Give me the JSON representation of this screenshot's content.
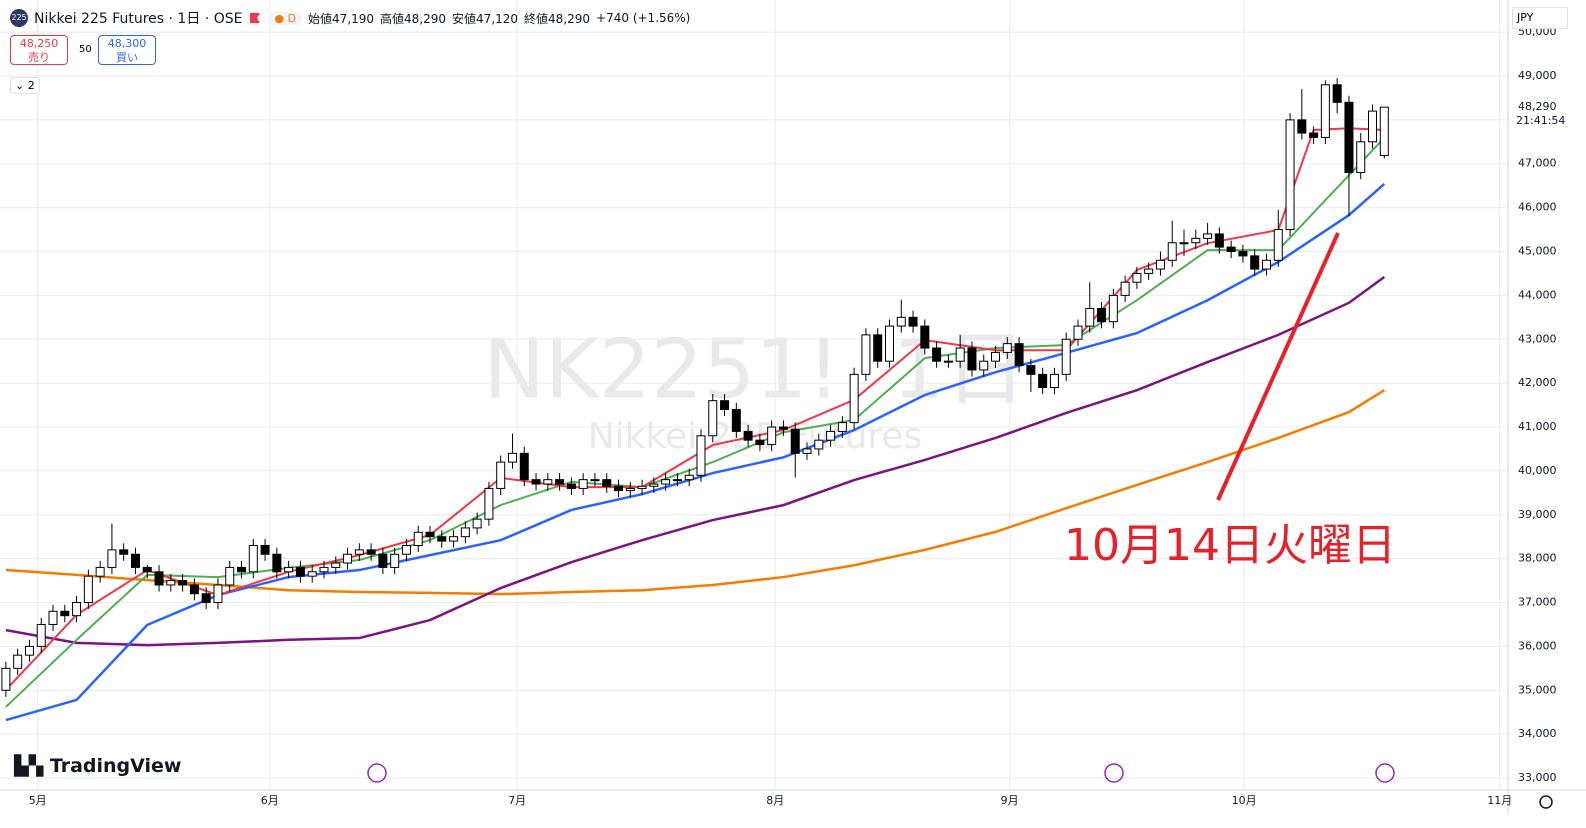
{
  "header": {
    "symbol": "Nikkei 225 Futures · 1日 · OSE",
    "badge": "225",
    "mode": "D",
    "ohlc": [
      "始値47,190",
      "高値48,290",
      "安値47,120",
      "終値48,290",
      "+740 (+1.56%)"
    ],
    "sell_price": "48,250",
    "sell": "売り",
    "spread": "50",
    "buy_price": "48,300",
    "buy": "買い",
    "indicators": "2",
    "currency": "JPY",
    "logo": "TradingView"
  },
  "chart_data": {
    "type": "candlestick",
    "watermark": "NK2251!, 1日",
    "watermark_sub": "Nikkei 225 Futures",
    "annotation": "10月14日火曜日",
    "xlim": [
      -0.5,
      127.5
    ],
    "xticks": [
      {
        "value": 2.7,
        "label": "5月"
      },
      {
        "value": 22.4,
        "label": "6月"
      },
      {
        "value": 43.4,
        "label": "7月"
      },
      {
        "value": 65.3,
        "label": "8月"
      },
      {
        "value": 85.2,
        "label": "9月"
      },
      {
        "value": 105.1,
        "label": "10月"
      },
      {
        "value": 126.8,
        "label": "11月"
      }
    ],
    "ylim": [
      32727,
      50732
    ],
    "yticks": [
      {
        "value": 33000,
        "label": "33,000"
      },
      {
        "value": 34000,
        "label": "34,000"
      },
      {
        "value": 35000,
        "label": "35,000"
      },
      {
        "value": 36000,
        "label": "36,000"
      },
      {
        "value": 37000,
        "label": "37,000"
      },
      {
        "value": 38000,
        "label": "38,000"
      },
      {
        "value": 39000,
        "label": "39,000"
      },
      {
        "value": 40000,
        "label": "40,000"
      },
      {
        "value": 41000,
        "label": "41,000"
      },
      {
        "value": 42000,
        "label": "42,000"
      },
      {
        "value": 43000,
        "label": "43,000"
      },
      {
        "value": 44000,
        "label": "44,000"
      },
      {
        "value": 45000,
        "label": "45,000"
      },
      {
        "value": 46000,
        "label": "46,000"
      },
      {
        "value": 47000,
        "label": "47,000"
      },
      {
        "value": 48000,
        "label": "48,000"
      },
      {
        "value": 49000,
        "label": "49,000"
      },
      {
        "value": 50000,
        "label": "50,000"
      }
    ],
    "grid": true,
    "up_color": "#ffffff",
    "down_color": "#000000",
    "last_price": {
      "value": 48290,
      "label": "48,290"
    },
    "countdown": "21:41:54",
    "candles": [
      [
        35000,
        35650,
        34850,
        35500
      ],
      [
        35500,
        35950,
        35350,
        35800
      ],
      [
        35800,
        36150,
        35650,
        36000
      ],
      [
        36000,
        36650,
        35850,
        36500
      ],
      [
        36500,
        36950,
        36350,
        36800
      ],
      [
        36800,
        36950,
        36550,
        36700
      ],
      [
        36700,
        37150,
        36550,
        37000
      ],
      [
        37000,
        37750,
        36850,
        37600
      ],
      [
        37600,
        37950,
        37450,
        37800
      ],
      [
        37800,
        38800,
        37650,
        38200
      ],
      [
        38200,
        38350,
        37950,
        38100
      ],
      [
        38100,
        38250,
        37650,
        37800
      ],
      [
        37800,
        37850,
        37550,
        37700
      ],
      [
        37700,
        37850,
        37250,
        37400
      ],
      [
        37400,
        37650,
        37250,
        37500
      ],
      [
        37500,
        37650,
        37250,
        37400
      ],
      [
        37400,
        37550,
        37050,
        37200
      ],
      [
        37200,
        37350,
        36850,
        37000
      ],
      [
        37000,
        37550,
        36850,
        37400
      ],
      [
        37400,
        37950,
        37250,
        37800
      ],
      [
        37800,
        37950,
        37550,
        37700
      ],
      [
        37700,
        38450,
        37550,
        38300
      ],
      [
        38300,
        38450,
        37950,
        38100
      ],
      [
        38100,
        38250,
        37550,
        37700
      ],
      [
        37700,
        37950,
        37550,
        37800
      ],
      [
        37800,
        37950,
        37450,
        37600
      ],
      [
        37600,
        37850,
        37450,
        37700
      ],
      [
        37700,
        37950,
        37550,
        37800
      ],
      [
        37800,
        38050,
        37650,
        37900
      ],
      [
        37900,
        38250,
        37750,
        38100
      ],
      [
        38100,
        38350,
        37950,
        38200
      ],
      [
        38200,
        38350,
        37950,
        38100
      ],
      [
        38100,
        38250,
        37650,
        37800
      ],
      [
        37800,
        38250,
        37650,
        38100
      ],
      [
        38100,
        38450,
        37950,
        38300
      ],
      [
        38300,
        38750,
        38150,
        38600
      ],
      [
        38600,
        38750,
        38350,
        38500
      ],
      [
        38500,
        38650,
        38250,
        38400
      ],
      [
        38400,
        38650,
        38250,
        38500
      ],
      [
        38500,
        38850,
        38350,
        38700
      ],
      [
        38700,
        39050,
        38550,
        38900
      ],
      [
        38900,
        39750,
        38750,
        39600
      ],
      [
        39600,
        40350,
        39450,
        40200
      ],
      [
        40200,
        40850,
        40050,
        40400
      ],
      [
        40400,
        40550,
        39650,
        39800
      ],
      [
        39800,
        39950,
        39550,
        39700
      ],
      [
        39700,
        39950,
        39550,
        39800
      ],
      [
        39800,
        39950,
        39550,
        39700
      ],
      [
        39700,
        39850,
        39450,
        39600
      ],
      [
        39600,
        39950,
        39450,
        39800
      ],
      [
        39800,
        39950,
        39650,
        39800
      ],
      [
        39800,
        39950,
        39500,
        39650
      ],
      [
        39650,
        39800,
        39400,
        39550
      ],
      [
        39550,
        39750,
        39400,
        39600
      ],
      [
        39600,
        39800,
        39450,
        39650
      ],
      [
        39650,
        39850,
        39500,
        39700
      ],
      [
        39700,
        39950,
        39550,
        39800
      ],
      [
        39800,
        39950,
        39650,
        39800
      ],
      [
        39800,
        40050,
        39650,
        39900
      ],
      [
        39900,
        40950,
        39750,
        40800
      ],
      [
        40800,
        41750,
        40650,
        41600
      ],
      [
        41600,
        41750,
        41250,
        41400
      ],
      [
        41400,
        41550,
        40750,
        40900
      ],
      [
        40900,
        41050,
        40550,
        40700
      ],
      [
        40700,
        40850,
        40450,
        40600
      ],
      [
        40600,
        41150,
        40450,
        41000
      ],
      [
        41000,
        41150,
        40800,
        40950
      ],
      [
        40950,
        41100,
        39850,
        40400
      ],
      [
        40400,
        40650,
        40250,
        40500
      ],
      [
        40500,
        40850,
        40350,
        40700
      ],
      [
        40700,
        41050,
        40550,
        40900
      ],
      [
        40900,
        41250,
        40750,
        41100
      ],
      [
        41100,
        42350,
        40950,
        42200
      ],
      [
        42200,
        43250,
        42050,
        43100
      ],
      [
        43100,
        43250,
        42350,
        42500
      ],
      [
        42500,
        43450,
        42350,
        43300
      ],
      [
        43300,
        43900,
        43150,
        43500
      ],
      [
        43500,
        43650,
        43150,
        43300
      ],
      [
        43300,
        43450,
        42650,
        42800
      ],
      [
        42800,
        42950,
        42350,
        42500
      ],
      [
        42500,
        42650,
        42350,
        42500
      ],
      [
        42500,
        43100,
        42350,
        42800
      ],
      [
        42800,
        42950,
        42150,
        42300
      ],
      [
        42300,
        42650,
        42150,
        42500
      ],
      [
        42500,
        42850,
        42350,
        42700
      ],
      [
        42700,
        43050,
        42550,
        42900
      ],
      [
        42900,
        43050,
        42250,
        42400
      ],
      [
        42400,
        42550,
        41800,
        42200
      ],
      [
        42200,
        42350,
        41750,
        41900
      ],
      [
        41900,
        42350,
        41750,
        42200
      ],
      [
        42200,
        43150,
        42050,
        43000
      ],
      [
        43000,
        43450,
        42850,
        43300
      ],
      [
        43300,
        44300,
        43150,
        43700
      ],
      [
        43700,
        43850,
        43250,
        43400
      ],
      [
        43400,
        44150,
        43250,
        44000
      ],
      [
        44000,
        44450,
        43850,
        44300
      ],
      [
        44300,
        44650,
        44150,
        44500
      ],
      [
        44500,
        44750,
        44350,
        44600
      ],
      [
        44600,
        45000,
        44450,
        44800
      ],
      [
        44800,
        45700,
        44650,
        45200
      ],
      [
        45200,
        45500,
        44900,
        45200
      ],
      [
        45200,
        45500,
        45050,
        45300
      ],
      [
        45300,
        45650,
        45150,
        45400
      ],
      [
        45400,
        45550,
        44950,
        45100
      ],
      [
        45100,
        45250,
        44850,
        45000
      ],
      [
        45000,
        45150,
        44750,
        44900
      ],
      [
        44900,
        45050,
        44450,
        44600
      ],
      [
        44600,
        44950,
        44450,
        44800
      ],
      [
        44800,
        45950,
        44650,
        45500
      ],
      [
        45500,
        48150,
        45350,
        48000
      ],
      [
        48000,
        48700,
        47550,
        47700
      ],
      [
        47700,
        47850,
        47450,
        47600
      ],
      [
        47600,
        48900,
        47450,
        48800
      ],
      [
        48800,
        48950,
        48150,
        48400
      ],
      [
        48400,
        48550,
        45800,
        46800
      ],
      [
        46800,
        47700,
        46650,
        47500
      ],
      [
        47500,
        48350,
        47350,
        48200
      ],
      [
        47190,
        48290,
        47120,
        48290
      ]
    ],
    "series": [
      {
        "color": "#f57c00",
        "x": [
          0,
          6,
          12,
          18,
          24,
          30,
          36,
          42,
          48,
          54,
          60,
          66,
          72,
          78,
          84,
          90,
          96,
          102,
          108,
          114,
          117
        ],
        "values": [
          37740,
          37630,
          37510,
          37400,
          37280,
          37240,
          37220,
          37190,
          37240,
          37280,
          37400,
          37580,
          37850,
          38200,
          38610,
          39150,
          39680,
          40200,
          40750,
          41340,
          41840
        ]
      },
      {
        "color": "#7b1380",
        "x": [
          0,
          6,
          12,
          18,
          24,
          30,
          36,
          42,
          48,
          54,
          60,
          66,
          72,
          78,
          84,
          90,
          96,
          102,
          108,
          114,
          117
        ],
        "values": [
          36370,
          36080,
          36030,
          36080,
          36150,
          36190,
          36600,
          37330,
          37920,
          38420,
          38880,
          39220,
          39790,
          40250,
          40750,
          41320,
          41840,
          42480,
          43100,
          43830,
          44420
        ]
      },
      {
        "color": "#2962ff",
        "x": [
          0,
          6,
          12,
          18,
          24,
          30,
          36,
          42,
          48,
          54,
          60,
          66,
          72,
          78,
          84,
          90,
          96,
          102,
          108,
          114,
          117
        ],
        "values": [
          34320,
          34780,
          36490,
          37170,
          37580,
          37740,
          38080,
          38420,
          39110,
          39470,
          39950,
          40310,
          40930,
          41730,
          42250,
          42690,
          43140,
          43890,
          44760,
          45830,
          46540
        ]
      },
      {
        "color": "#4caf50",
        "x": [
          0,
          6,
          12,
          18,
          24,
          30,
          36,
          42,
          48,
          54,
          60,
          66,
          72,
          78,
          84,
          90,
          96,
          102,
          108,
          114,
          117
        ],
        "values": [
          34620,
          36150,
          37630,
          37580,
          37790,
          37970,
          38420,
          39220,
          39750,
          39630,
          40200,
          40880,
          41160,
          42570,
          42800,
          42870,
          43890,
          45030,
          45030,
          46740,
          47590
        ]
      },
      {
        "color": "#f23645",
        "x": [
          0,
          6,
          12,
          18,
          24,
          30,
          36,
          42,
          48,
          54,
          60,
          66,
          72,
          78,
          84,
          90,
          96,
          102,
          108,
          111,
          114,
          117
        ],
        "values": [
          35010,
          36720,
          37740,
          37170,
          37700,
          38080,
          38540,
          39840,
          39630,
          39630,
          40590,
          40930,
          41620,
          42980,
          42750,
          42750,
          44580,
          45190,
          45490,
          47770,
          47810,
          47770
        ]
      }
    ]
  }
}
